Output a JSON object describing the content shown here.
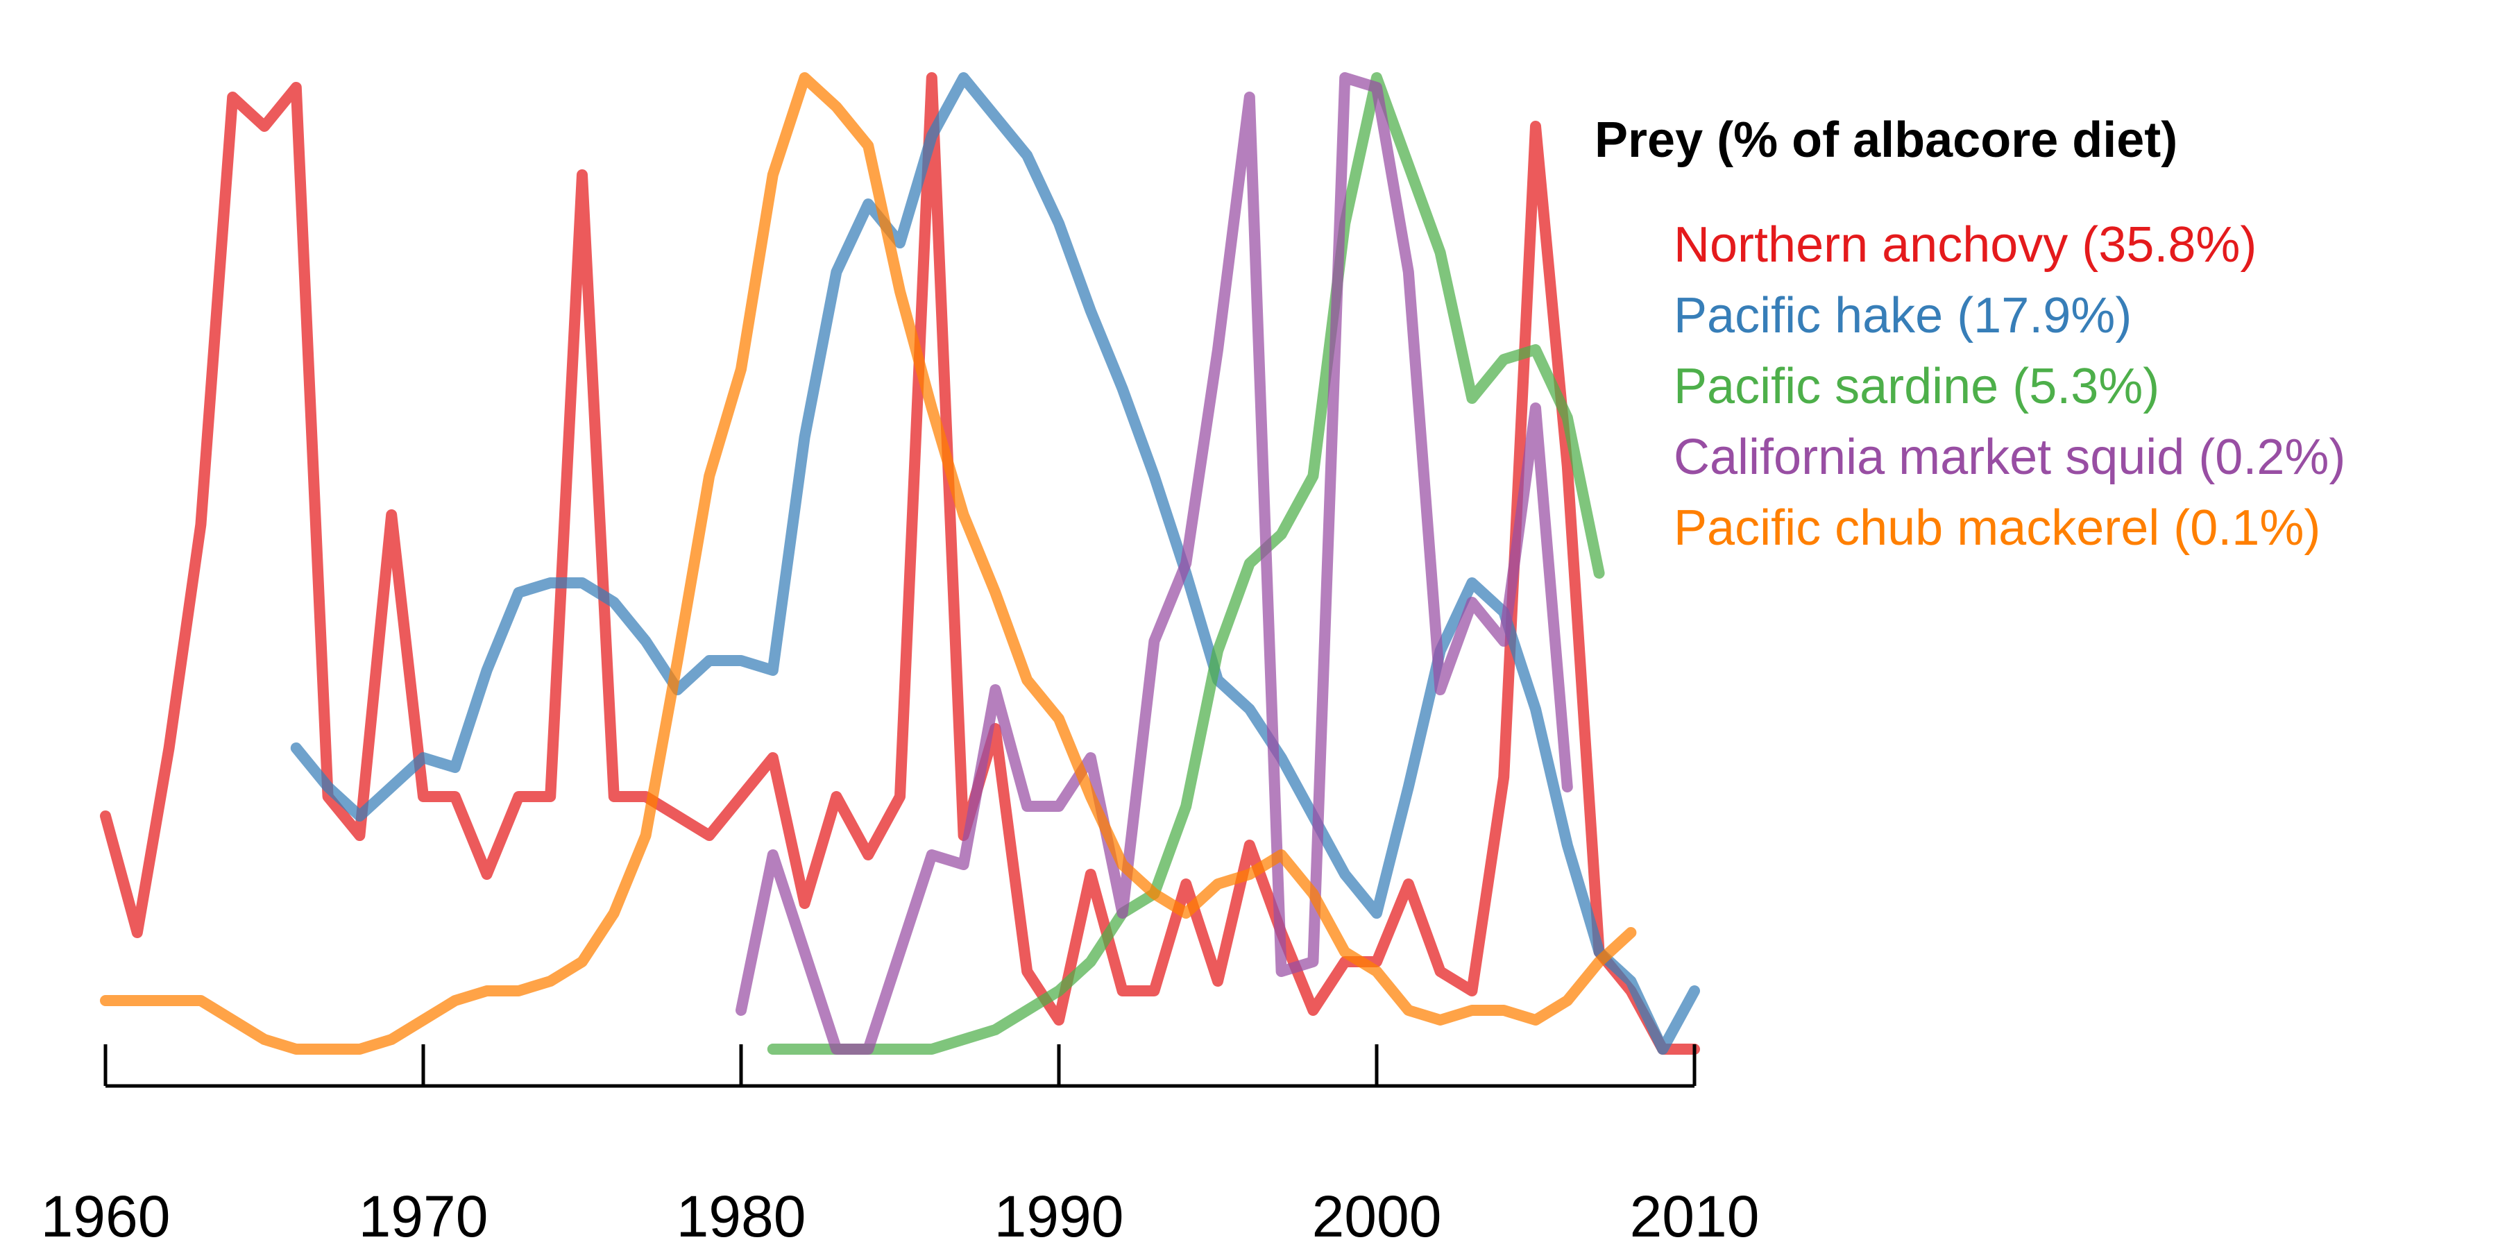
{
  "chart_data": {
    "type": "line",
    "xlim": [
      1960,
      2010
    ],
    "ylim": [
      0,
      1
    ],
    "x_ticks": [
      1960,
      1970,
      1980,
      1990,
      2000,
      2010
    ],
    "y_axis_shown": false,
    "grid": false,
    "legend_placement": "top-right",
    "legend_title": "Prey (% of albacore diet)",
    "series": [
      {
        "name": "Northern anchovy (35.8%)",
        "color": "#e41a1c",
        "points": [
          [
            1960,
            0.24
          ],
          [
            1961,
            0.12
          ],
          [
            1962,
            0.31
          ],
          [
            1963,
            0.54
          ],
          [
            1964,
            0.98
          ],
          [
            1965,
            0.95
          ],
          [
            1966,
            0.99
          ],
          [
            1967,
            0.26
          ],
          [
            1968,
            0.22
          ],
          [
            1969,
            0.55
          ],
          [
            1970,
            0.26
          ],
          [
            1971,
            0.26
          ],
          [
            1972,
            0.18
          ],
          [
            1973,
            0.26
          ],
          [
            1974,
            0.26
          ],
          [
            1975,
            0.9
          ],
          [
            1976,
            0.26
          ],
          [
            1977,
            0.26
          ],
          [
            1978,
            0.24
          ],
          [
            1979,
            0.22
          ],
          [
            1980,
            0.26
          ],
          [
            1981,
            0.3
          ],
          [
            1982,
            0.15
          ],
          [
            1983,
            0.26
          ],
          [
            1984,
            0.2
          ],
          [
            1985,
            0.26
          ],
          [
            1986,
            1.0
          ],
          [
            1987,
            0.22
          ],
          [
            1988,
            0.33
          ],
          [
            1989,
            0.08
          ],
          [
            1990,
            0.03
          ],
          [
            1991,
            0.18
          ],
          [
            1992,
            0.06
          ],
          [
            1993,
            0.06
          ],
          [
            1994,
            0.17
          ],
          [
            1995,
            0.07
          ],
          [
            1996,
            0.21
          ],
          [
            1997,
            0.12
          ],
          [
            1998,
            0.04
          ],
          [
            1999,
            0.09
          ],
          [
            2000,
            0.09
          ],
          [
            2001,
            0.17
          ],
          [
            2002,
            0.08
          ],
          [
            2003,
            0.06
          ],
          [
            2004,
            0.28
          ],
          [
            2005,
            0.95
          ],
          [
            2006,
            0.6
          ],
          [
            2007,
            0.1
          ],
          [
            2008,
            0.06
          ],
          [
            2009,
            0.0
          ],
          [
            2010,
            0.0
          ]
        ]
      },
      {
        "name": "Pacific hake (17.9%)",
        "color": "#377eb8",
        "points": [
          [
            1966,
            0.31
          ],
          [
            1967,
            0.27
          ],
          [
            1968,
            0.24
          ],
          [
            1969,
            0.27
          ],
          [
            1970,
            0.3
          ],
          [
            1971,
            0.29
          ],
          [
            1972,
            0.39
          ],
          [
            1973,
            0.47
          ],
          [
            1974,
            0.48
          ],
          [
            1975,
            0.48
          ],
          [
            1976,
            0.46
          ],
          [
            1977,
            0.42
          ],
          [
            1978,
            0.37
          ],
          [
            1979,
            0.4
          ],
          [
            1980,
            0.4
          ],
          [
            1981,
            0.39
          ],
          [
            1982,
            0.63
          ],
          [
            1983,
            0.8
          ],
          [
            1984,
            0.87
          ],
          [
            1985,
            0.83
          ],
          [
            1986,
            0.94
          ],
          [
            1987,
            1.0
          ],
          [
            1988,
            0.96
          ],
          [
            1989,
            0.92
          ],
          [
            1990,
            0.85
          ],
          [
            1991,
            0.76
          ],
          [
            1992,
            0.68
          ],
          [
            1993,
            0.59
          ],
          [
            1994,
            0.49
          ],
          [
            1995,
            0.38
          ],
          [
            1996,
            0.35
          ],
          [
            1997,
            0.3
          ],
          [
            1998,
            0.24
          ],
          [
            1999,
            0.18
          ],
          [
            2000,
            0.14
          ],
          [
            2001,
            0.27
          ],
          [
            2002,
            0.41
          ],
          [
            2003,
            0.48
          ],
          [
            2004,
            0.45
          ],
          [
            2005,
            0.35
          ],
          [
            2006,
            0.21
          ],
          [
            2007,
            0.1
          ],
          [
            2008,
            0.07
          ],
          [
            2009,
            0.0
          ],
          [
            2010,
            0.06
          ]
        ]
      },
      {
        "name": "Pacific sardine (5.3%)",
        "color": "#4daf4a",
        "points": [
          [
            1981,
            0.0
          ],
          [
            1982,
            0.0
          ],
          [
            1983,
            0.0
          ],
          [
            1984,
            0.0
          ],
          [
            1985,
            0.0
          ],
          [
            1986,
            0.0
          ],
          [
            1987,
            0.01
          ],
          [
            1988,
            0.02
          ],
          [
            1989,
            0.04
          ],
          [
            1990,
            0.06
          ],
          [
            1991,
            0.09
          ],
          [
            1992,
            0.14
          ],
          [
            1993,
            0.16
          ],
          [
            1994,
            0.25
          ],
          [
            1995,
            0.41
          ],
          [
            1996,
            0.5
          ],
          [
            1997,
            0.53
          ],
          [
            1998,
            0.59
          ],
          [
            1999,
            0.85
          ],
          [
            2000,
            1.0
          ],
          [
            2001,
            0.91
          ],
          [
            2002,
            0.82
          ],
          [
            2003,
            0.67
          ],
          [
            2004,
            0.71
          ],
          [
            2005,
            0.72
          ],
          [
            2006,
            0.65
          ],
          [
            2007,
            0.49
          ]
        ]
      },
      {
        "name": "California market squid (0.2%)",
        "color": "#984ea3",
        "points": [
          [
            1980,
            0.04
          ],
          [
            1981,
            0.2
          ],
          [
            1982,
            0.1
          ],
          [
            1983,
            0.0
          ],
          [
            1984,
            0.0
          ],
          [
            1985,
            0.1
          ],
          [
            1986,
            0.2
          ],
          [
            1987,
            0.19
          ],
          [
            1988,
            0.37
          ],
          [
            1989,
            0.25
          ],
          [
            1990,
            0.25
          ],
          [
            1991,
            0.3
          ],
          [
            1992,
            0.14
          ],
          [
            1993,
            0.42
          ],
          [
            1994,
            0.5
          ],
          [
            1995,
            0.72
          ],
          [
            1996,
            0.98
          ],
          [
            1997,
            0.08
          ],
          [
            1998,
            0.09
          ],
          [
            1999,
            1.0
          ],
          [
            2000,
            0.99
          ],
          [
            2001,
            0.8
          ],
          [
            2002,
            0.37
          ],
          [
            2003,
            0.46
          ],
          [
            2004,
            0.42
          ],
          [
            2005,
            0.66
          ],
          [
            2006,
            0.27
          ]
        ]
      },
      {
        "name": "Pacific chub mackerel (0.1%)",
        "color": "#ff7f00",
        "points": [
          [
            1960,
            0.05
          ],
          [
            1961,
            0.05
          ],
          [
            1962,
            0.05
          ],
          [
            1963,
            0.05
          ],
          [
            1964,
            0.03
          ],
          [
            1965,
            0.01
          ],
          [
            1966,
            0.0
          ],
          [
            1967,
            0.0
          ],
          [
            1968,
            0.0
          ],
          [
            1969,
            0.01
          ],
          [
            1970,
            0.03
          ],
          [
            1971,
            0.05
          ],
          [
            1972,
            0.06
          ],
          [
            1973,
            0.06
          ],
          [
            1974,
            0.07
          ],
          [
            1975,
            0.09
          ],
          [
            1976,
            0.14
          ],
          [
            1977,
            0.22
          ],
          [
            1978,
            0.4
          ],
          [
            1979,
            0.59
          ],
          [
            1980,
            0.7
          ],
          [
            1981,
            0.9
          ],
          [
            1982,
            1.0
          ],
          [
            1983,
            0.97
          ],
          [
            1984,
            0.93
          ],
          [
            1985,
            0.78
          ],
          [
            1986,
            0.66
          ],
          [
            1987,
            0.55
          ],
          [
            1988,
            0.47
          ],
          [
            1989,
            0.38
          ],
          [
            1990,
            0.34
          ],
          [
            1991,
            0.26
          ],
          [
            1992,
            0.19
          ],
          [
            1993,
            0.16
          ],
          [
            1994,
            0.14
          ],
          [
            1995,
            0.17
          ],
          [
            1996,
            0.18
          ],
          [
            1997,
            0.2
          ],
          [
            1998,
            0.16
          ],
          [
            1999,
            0.1
          ],
          [
            2000,
            0.08
          ],
          [
            2001,
            0.04
          ],
          [
            2002,
            0.03
          ],
          [
            2003,
            0.04
          ],
          [
            2004,
            0.04
          ],
          [
            2005,
            0.03
          ],
          [
            2006,
            0.05
          ],
          [
            2007,
            0.09
          ],
          [
            2008,
            0.12
          ]
        ]
      }
    ]
  }
}
